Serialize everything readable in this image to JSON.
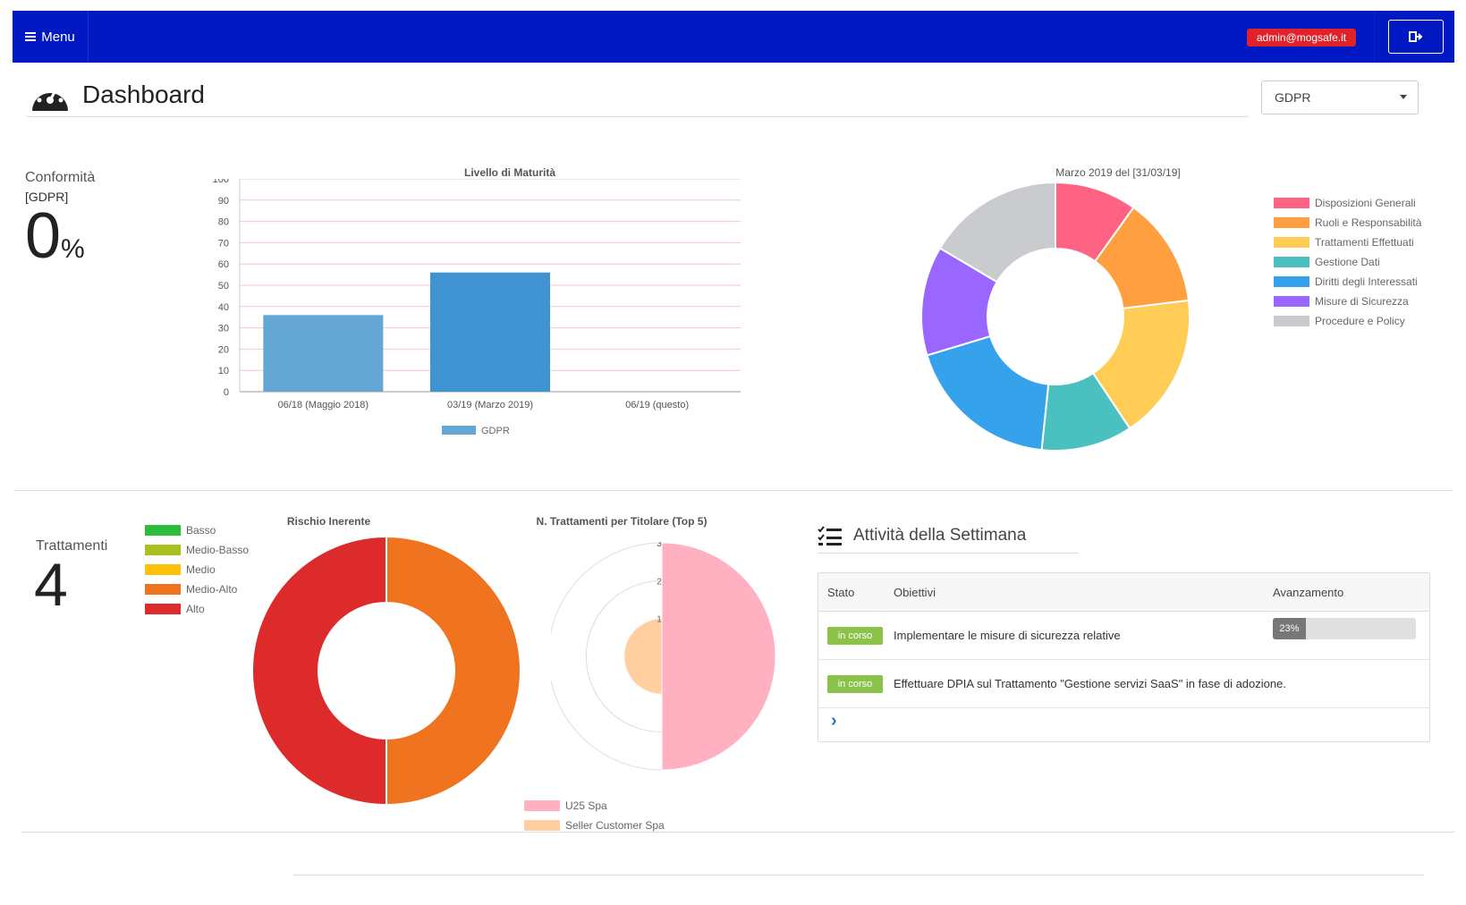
{
  "topbar": {
    "menu_label": "Menu",
    "user_email": "admin@mogsafe.it",
    "bg_color": "#0019c2",
    "badge_color": "#e0232a",
    "menu_icon": "hamburger-icon",
    "logout_icon": "sign-out-icon"
  },
  "header": {
    "title": "Dashboard",
    "icon": "dashboard-gauge-icon",
    "select_value": "GDPR"
  },
  "conformita": {
    "label": "Conformità",
    "sublabel": "[GDPR]",
    "value": "0",
    "unit": "%"
  },
  "trattamenti": {
    "label": "Trattamenti",
    "value": "4"
  },
  "chart_data": [
    {
      "type": "bar",
      "title": "Livello di Maturità",
      "categories": [
        "06/18 (Maggio 2018)",
        "03/19 (Marzo 2019)",
        "06/19 (questo)"
      ],
      "series": [
        {
          "name": "GDPR",
          "values": [
            36,
            56,
            0
          ],
          "color": "#3f93d1"
        }
      ],
      "ylim": [
        0,
        100
      ],
      "yticks": [
        0,
        10,
        20,
        30,
        40,
        50,
        60,
        70,
        80,
        90,
        100
      ],
      "grid": true,
      "legend": "bottom"
    },
    {
      "type": "pie",
      "title": "Marzo 2019 del [31/03/19]",
      "labels": [
        "Disposizioni Generali",
        "Ruoli e Responsabilità",
        "Trattamenti Effettuati",
        "Gestione Dati",
        "Diritti degli Interessati",
        "Misure di Sicurezza",
        "Procedure e Policy"
      ],
      "values": [
        9,
        12,
        16,
        10,
        17,
        12,
        15
      ],
      "colors": [
        "#ff6384",
        "#ff9f40",
        "#ffcd56",
        "#4bc0c0",
        "#36a2eb",
        "#9966ff",
        "#c9cbcf"
      ],
      "legend": "right"
    },
    {
      "type": "pie",
      "title": "Rischio Inerente",
      "labels": [
        "Basso",
        "Medio-Basso",
        "Medio",
        "Medio-Alto",
        "Alto"
      ],
      "values": [
        0,
        0,
        0,
        2,
        2
      ],
      "colors": [
        "#2ebd3a",
        "#a9c01f",
        "#ffc107",
        "#f07320",
        "#dd2a2a"
      ],
      "legend": "left"
    },
    {
      "type": "polar",
      "title": "N. Trattamenti per Titolare (Top 5)",
      "labels": [
        "U25 Spa",
        "Seller Customer Spa"
      ],
      "values": [
        3,
        1
      ],
      "colors": [
        "#ffb1c1",
        "#ffcf9f"
      ],
      "rticks": [
        1,
        2,
        3
      ],
      "legend": "bottom"
    }
  ],
  "activity": {
    "title": "Attività della Settimana",
    "icon": "tasks-list-icon",
    "columns": [
      "Stato",
      "Obiettivi",
      "Avanzamento"
    ],
    "rows": [
      {
        "status": "in corso",
        "objective": "Implementare le misure di sicurezza relative",
        "progress_label": "23%",
        "progress": 23
      },
      {
        "status": "in corso",
        "objective": "Effettuare DPIA sul Trattamento \"Gestione servizi SaaS\" in fase di adozione.",
        "progress_label": "",
        "progress": null
      }
    ],
    "expand_icon": "chevron-right-icon"
  }
}
